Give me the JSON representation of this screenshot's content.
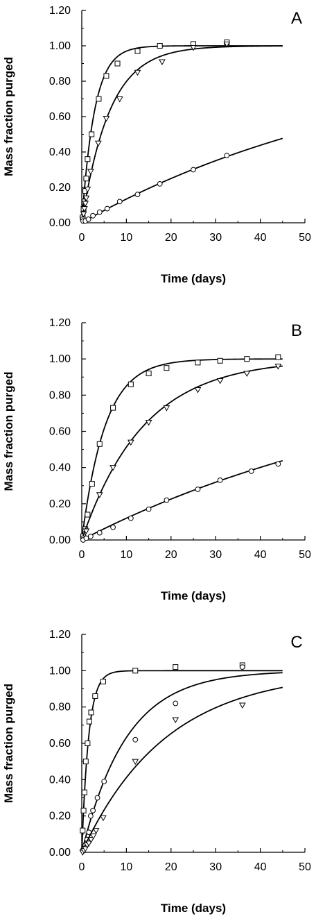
{
  "chart_data": [
    {
      "type": "scatter",
      "panel_label": "A",
      "xlabel": "Time (days)",
      "ylabel": "Mass fraction purged",
      "xlim": [
        0,
        50
      ],
      "ylim": [
        0,
        1.2
      ],
      "x_ticks": [
        "0",
        "10",
        "20",
        "30",
        "40",
        "50"
      ],
      "y_ticks": [
        "0.00",
        "0.20",
        "0.40",
        "0.60",
        "0.80",
        "1.00",
        "1.20"
      ],
      "grid": false,
      "series": [
        {
          "marker": "square",
          "points": [
            [
              0.2,
              0.03
            ],
            [
              0.4,
              0.08
            ],
            [
              0.6,
              0.12
            ],
            [
              0.8,
              0.18
            ],
            [
              1.0,
              0.25
            ],
            [
              1.3,
              0.36
            ],
            [
              2.2,
              0.5
            ],
            [
              3.8,
              0.7
            ],
            [
              5.5,
              0.83
            ],
            [
              8.0,
              0.9
            ],
            [
              12.5,
              0.97
            ],
            [
              17.5,
              1.0
            ],
            [
              25.0,
              1.01
            ],
            [
              32.5,
              1.02
            ]
          ],
          "fit_k": 0.35
        },
        {
          "marker": "triangle-down",
          "points": [
            [
              0.2,
              0.02
            ],
            [
              0.4,
              0.05
            ],
            [
              0.6,
              0.08
            ],
            [
              0.8,
              0.11
            ],
            [
              1.0,
              0.14
            ],
            [
              1.3,
              0.19
            ],
            [
              2.0,
              0.29
            ],
            [
              3.7,
              0.45
            ],
            [
              5.5,
              0.59
            ],
            [
              8.5,
              0.7
            ],
            [
              12.5,
              0.85
            ],
            [
              18.0,
              0.91
            ],
            [
              25.0,
              0.99
            ],
            [
              32.5,
              1.01
            ]
          ],
          "fit_k": 0.16
        },
        {
          "marker": "circle",
          "points": [
            [
              0.3,
              0.01
            ],
            [
              0.8,
              0.01
            ],
            [
              1.5,
              0.02
            ],
            [
              2.5,
              0.04
            ],
            [
              4.0,
              0.06
            ],
            [
              5.7,
              0.08
            ],
            [
              8.5,
              0.12
            ],
            [
              12.5,
              0.16
            ],
            [
              17.5,
              0.22
            ],
            [
              25.0,
              0.3
            ],
            [
              32.5,
              0.38
            ]
          ],
          "fit_k": 0.0144
        }
      ]
    },
    {
      "type": "scatter",
      "panel_label": "B",
      "xlabel": "Time (days)",
      "ylabel": "Mass fraction purged",
      "xlim": [
        0,
        50
      ],
      "ylim": [
        0,
        1.2
      ],
      "x_ticks": [
        "0",
        "10",
        "20",
        "30",
        "40",
        "50"
      ],
      "y_ticks": [
        "0.00",
        "0.20",
        "0.40",
        "0.60",
        "0.80",
        "1.00",
        "1.20"
      ],
      "grid": false,
      "series": [
        {
          "marker": "square",
          "points": [
            [
              0.3,
              0.02
            ],
            [
              0.8,
              0.06
            ],
            [
              1.3,
              0.14
            ],
            [
              2.3,
              0.31
            ],
            [
              4.0,
              0.53
            ],
            [
              7.0,
              0.73
            ],
            [
              11.0,
              0.86
            ],
            [
              15.0,
              0.92
            ],
            [
              19.0,
              0.95
            ],
            [
              26.0,
              0.98
            ],
            [
              31.0,
              0.99
            ],
            [
              37.0,
              1.0
            ],
            [
              44.0,
              1.01
            ]
          ],
          "fit_k": 0.19
        },
        {
          "marker": "triangle-down",
          "points": [
            [
              0.3,
              0.01
            ],
            [
              1.0,
              0.05
            ],
            [
              4.0,
              0.25
            ],
            [
              7.0,
              0.4
            ],
            [
              11.0,
              0.54
            ],
            [
              15.0,
              0.65
            ],
            [
              19.0,
              0.73
            ],
            [
              26.0,
              0.83
            ],
            [
              31.0,
              0.88
            ],
            [
              37.0,
              0.92
            ],
            [
              44.0,
              0.96
            ]
          ],
          "fit_k": 0.072
        },
        {
          "marker": "circle",
          "points": [
            [
              0.3,
              0.0
            ],
            [
              1.0,
              0.01
            ],
            [
              2.0,
              0.02
            ],
            [
              4.0,
              0.04
            ],
            [
              7.0,
              0.07
            ],
            [
              11.0,
              0.12
            ],
            [
              15.0,
              0.17
            ],
            [
              19.0,
              0.22
            ],
            [
              26.0,
              0.28
            ],
            [
              31.0,
              0.33
            ],
            [
              38.0,
              0.38
            ],
            [
              44.0,
              0.42
            ]
          ],
          "fit_k": 0.0128
        }
      ]
    },
    {
      "type": "scatter",
      "panel_label": "C",
      "xlabel": "Time (days)",
      "ylabel": "Mass fraction purged",
      "xlim": [
        0,
        50
      ],
      "ylim": [
        0,
        1.2
      ],
      "x_ticks": [
        "0",
        "10",
        "20",
        "30",
        "40",
        "50"
      ],
      "y_ticks": [
        "0.00",
        "0.20",
        "0.40",
        "0.60",
        "0.80",
        "1.00",
        "1.20"
      ],
      "grid": false,
      "series": [
        {
          "marker": "square",
          "points": [
            [
              0.2,
              0.12
            ],
            [
              0.4,
              0.23
            ],
            [
              0.6,
              0.33
            ],
            [
              0.9,
              0.5
            ],
            [
              1.3,
              0.6
            ],
            [
              1.7,
              0.72
            ],
            [
              2.1,
              0.77
            ],
            [
              3.0,
              0.86
            ],
            [
              4.8,
              0.94
            ],
            [
              12.0,
              1.0
            ],
            [
              21.0,
              1.02
            ],
            [
              36.0,
              1.03
            ]
          ],
          "fit_k": 0.65
        },
        {
          "marker": "circle",
          "points": [
            [
              0.2,
              0.01
            ],
            [
              0.5,
              0.02
            ],
            [
              0.8,
              0.04
            ],
            [
              1.2,
              0.07
            ],
            [
              1.6,
              0.11
            ],
            [
              2.0,
              0.2
            ],
            [
              2.5,
              0.23
            ],
            [
              3.5,
              0.3
            ],
            [
              5.0,
              0.39
            ],
            [
              12.0,
              0.62
            ],
            [
              21.0,
              0.82
            ],
            [
              36.0,
              1.02
            ]
          ],
          "fit_k": 0.1
        },
        {
          "marker": "triangle-down",
          "points": [
            [
              0.2,
              0.0
            ],
            [
              0.5,
              0.01
            ],
            [
              0.8,
              0.02
            ],
            [
              1.2,
              0.04
            ],
            [
              1.6,
              0.05
            ],
            [
              2.1,
              0.07
            ],
            [
              2.6,
              0.09
            ],
            [
              3.2,
              0.12
            ],
            [
              4.8,
              0.19
            ],
            [
              12.0,
              0.5
            ],
            [
              21.0,
              0.73
            ],
            [
              36.0,
              0.81
            ]
          ],
          "fit_k": 0.053
        }
      ]
    }
  ]
}
